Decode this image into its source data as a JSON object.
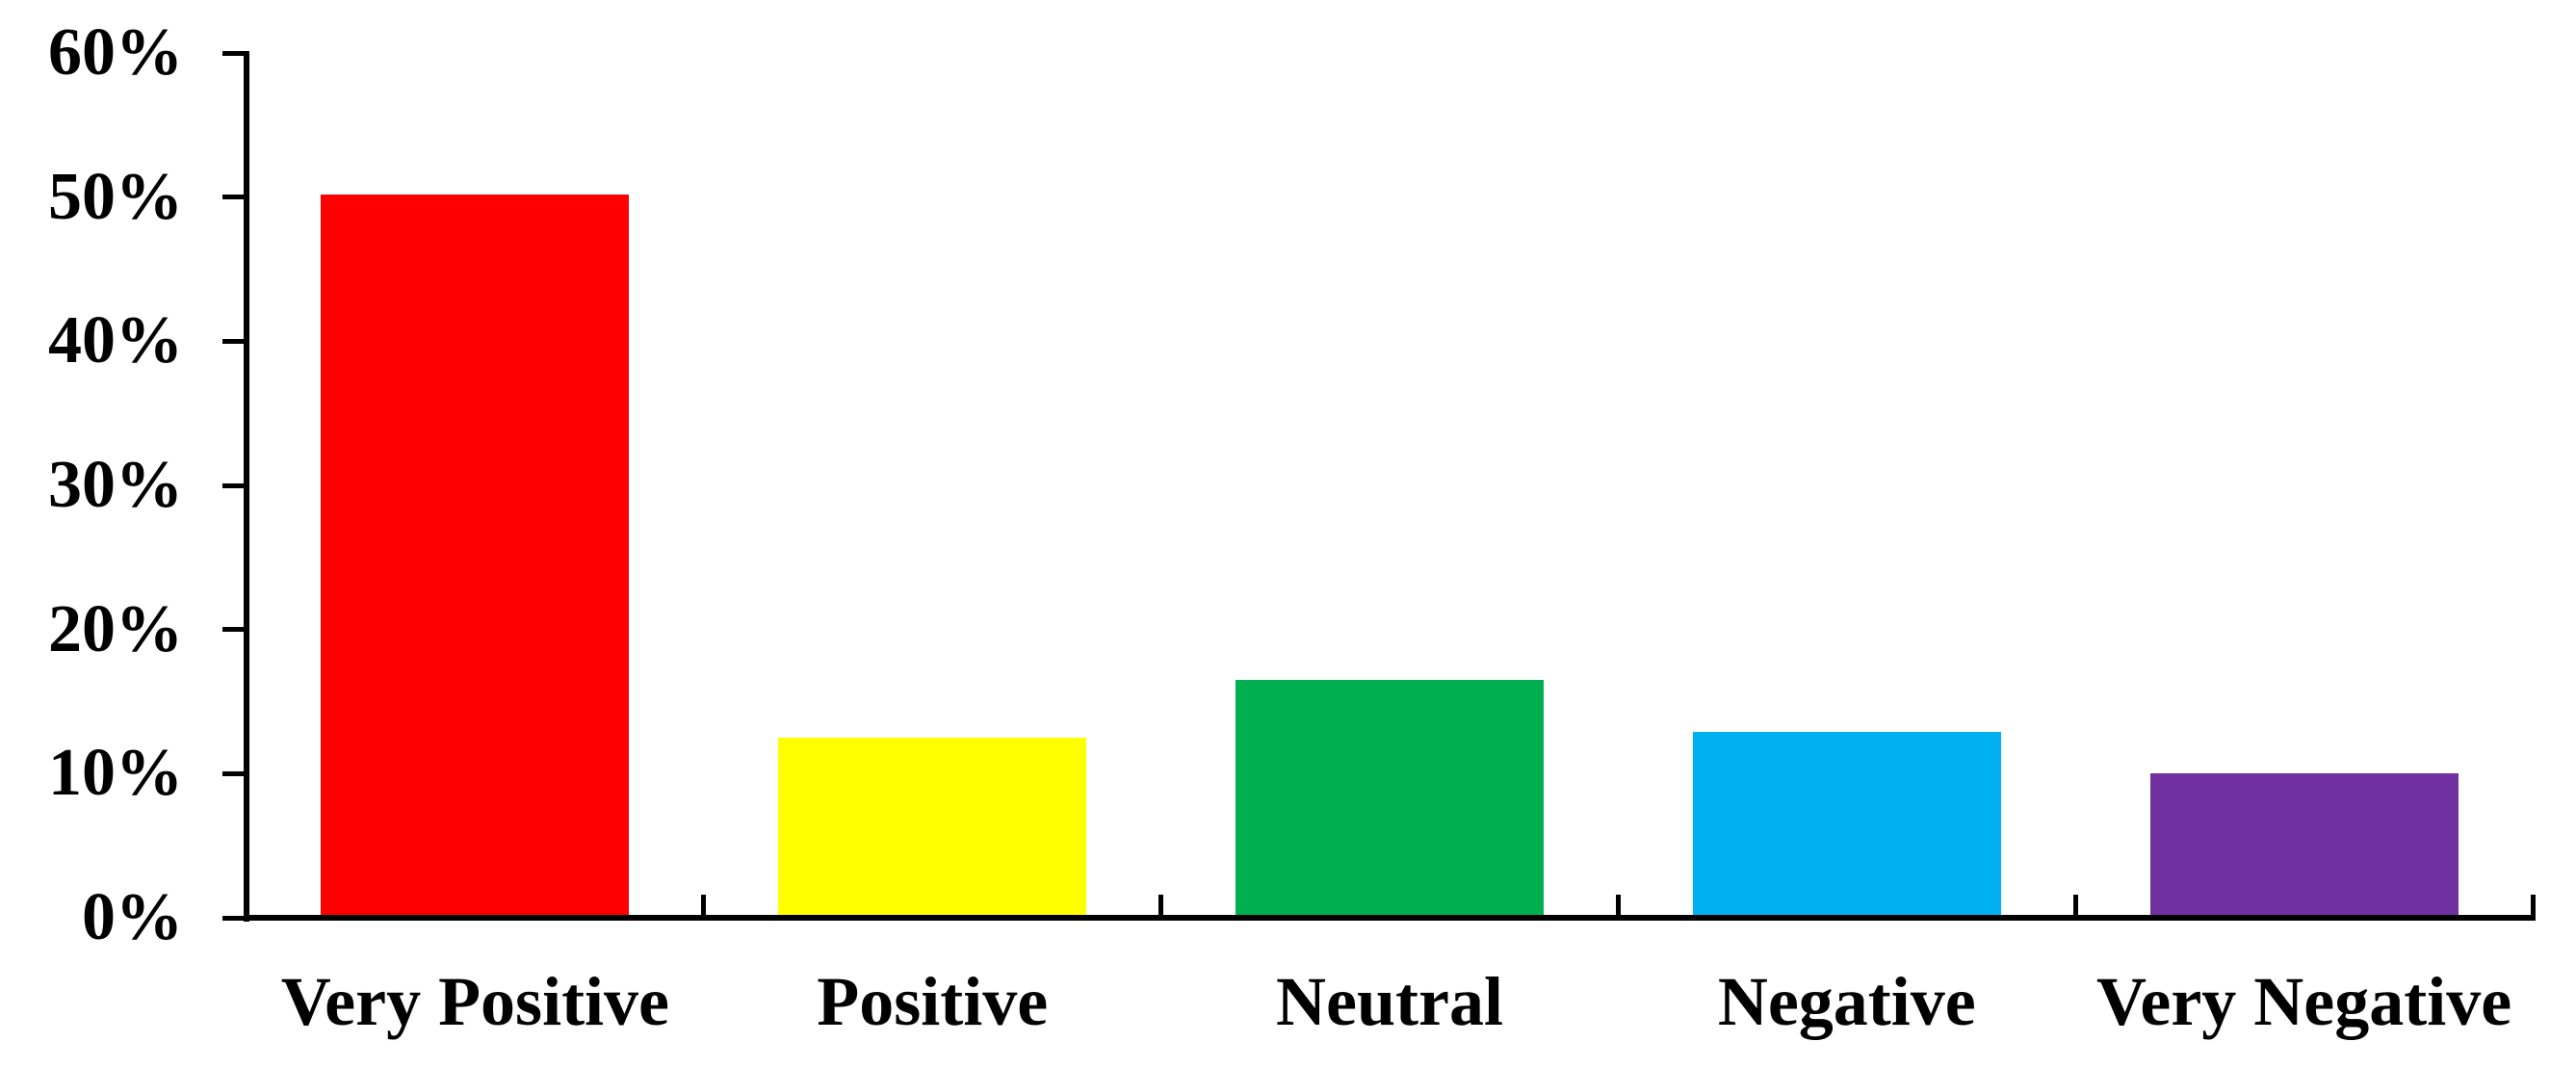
{
  "chart_data": {
    "type": "bar",
    "title": "",
    "xlabel": "",
    "ylabel": "",
    "categories": [
      "Very Positive",
      "Positive",
      "Neutral",
      "Negative",
      "Very Negative"
    ],
    "values": [
      50,
      12.3,
      16.3,
      12.7,
      9.8
    ],
    "value_unit": "%",
    "bar_colors": [
      "#FF0000",
      "#FFFF00",
      "#00B050",
      "#00B0F0",
      "#7030A0"
    ],
    "ylim": [
      0,
      60
    ],
    "ytick_step": 10,
    "ytick_labels": [
      "0%",
      "10%",
      "20%",
      "30%",
      "40%",
      "50%",
      "60%"
    ],
    "grid": false,
    "legend": false,
    "axis_color": "#000000",
    "text_color": "#000000",
    "background_color": "#FFFFFF"
  }
}
